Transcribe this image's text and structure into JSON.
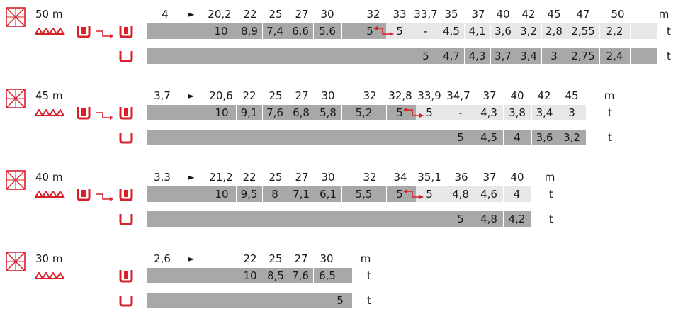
{
  "colors": {
    "dark": "#a8a8a8",
    "mid": "#c9c9c9",
    "light": "#e7e7e7",
    "accent": "#d8202a"
  },
  "icons": {
    "crane": "tower-crane-grid-icon",
    "trolley": "trolley-icon",
    "double_hook": "double-hook-block-icon",
    "changeover": "changeover-arrow-icon",
    "single_hook": "single-hook-block-icon",
    "transition": "double-to-single-red-arrow-icon"
  },
  "sections": [
    {
      "jib": "50 m",
      "min_radius": "4",
      "arrow": "►",
      "radii": [
        "20,2",
        "22",
        "25",
        "27",
        "30",
        "32",
        "33",
        "33,7",
        "35",
        "37",
        "40",
        "42",
        "45",
        "47",
        "50"
      ],
      "dist_unit": "m",
      "double_loads": [
        "10",
        "8,9",
        "7,4",
        "6,6",
        "5,6",
        "5",
        "5",
        "-",
        "4,5",
        "4,1",
        "3,6",
        "3,2",
        "2,8",
        "2,55",
        "2,2"
      ],
      "single_loads": [
        "5",
        "4,7",
        "4,3",
        "3,7",
        "3,4",
        "3",
        "2,75",
        "2,4"
      ],
      "load_unit": "t"
    },
    {
      "jib": "45 m",
      "min_radius": "3,7",
      "arrow": "►",
      "radii": [
        "20,6",
        "22",
        "25",
        "27",
        "30",
        "32",
        "32,8",
        "33,9",
        "34,7",
        "37",
        "40",
        "42",
        "45"
      ],
      "dist_unit": "m",
      "double_loads": [
        "10",
        "9,1",
        "7,6",
        "6,8",
        "5,8",
        "5,2",
        "5",
        "5",
        "-",
        "4,3",
        "3,8",
        "3,4",
        "3"
      ],
      "single_loads": [
        "5",
        "4,5",
        "4",
        "3,6",
        "3,2"
      ],
      "load_unit": "t"
    },
    {
      "jib": "40 m",
      "min_radius": "3,3",
      "arrow": "►",
      "radii": [
        "21,2",
        "22",
        "25",
        "27",
        "30",
        "32",
        "34",
        "35,1",
        "36",
        "37",
        "40"
      ],
      "dist_unit": "m",
      "double_loads": [
        "10",
        "9,5",
        "8",
        "7,1",
        "6,1",
        "5,5",
        "5",
        "5",
        "4,8",
        "4,6",
        "4"
      ],
      "single_loads": [
        "5",
        "4,8",
        "4,2"
      ],
      "load_unit": "t"
    },
    {
      "jib": "30 m",
      "min_radius": "2,6",
      "arrow": "►",
      "radii": [
        "22",
        "25",
        "27",
        "30"
      ],
      "dist_unit": "m",
      "double_loads": [
        "10",
        "8,5",
        "7,6",
        "6,5"
      ],
      "single_loads": [
        "5"
      ],
      "load_unit": "t"
    }
  ]
}
